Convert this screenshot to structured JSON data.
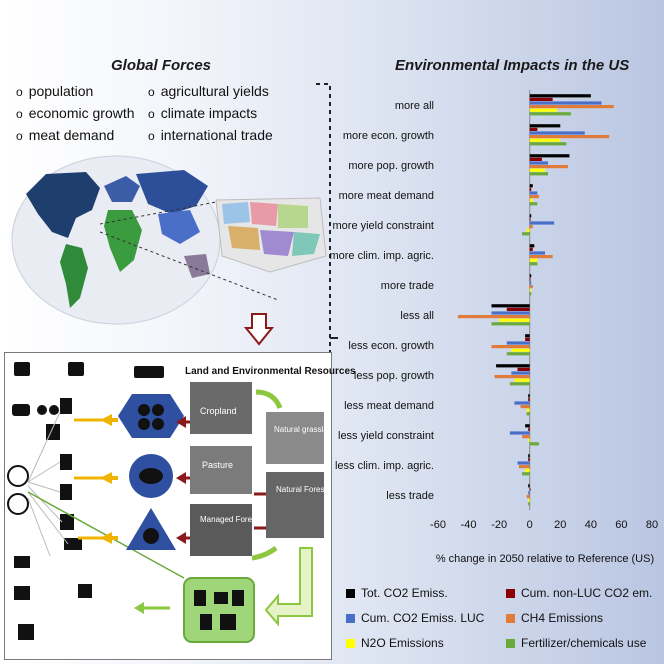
{
  "left_title": "Global Forces",
  "forces_left": [
    "population",
    "economic growth",
    "meat demand"
  ],
  "forces_right": [
    "agricultural yields",
    "climate impacts",
    "international trade"
  ],
  "bullet": "o",
  "resources_title": "Land and Environmental Resources",
  "photo_labels": {
    "cropland": "Cropland",
    "pasture": "Pasture",
    "managed_forest": "Managed\nForest",
    "natural_grasslands": "Natural\ngrasslands",
    "natural_forests": "Natural\nForests"
  },
  "colors": {
    "tot_co2": "#000000",
    "cum_non_luc": "#8b0000",
    "cum_luc": "#4a6fc9",
    "ch4": "#e07b39",
    "n2o": "#ffff00",
    "fert": "#6aaa3c"
  },
  "chart_data": {
    "type": "bar",
    "orientation": "horizontal",
    "title": "Environmental Impacts in the US",
    "xlabel": "% change in 2050 relative to Reference (US)",
    "xlim": [
      -60,
      80
    ],
    "xticks": [
      -60,
      -40,
      -20,
      0,
      20,
      40,
      60,
      80
    ],
    "categories": [
      "more all",
      "more econ. growth",
      "more pop. growth",
      "more meat demand",
      "more yield constraint",
      "more clim. imp. agric.",
      "more trade",
      "less all",
      "less econ. growth",
      "less pop. growth",
      "less meat demand",
      "less yield constraint",
      "less clim. imp. agric.",
      "less trade"
    ],
    "series": [
      {
        "name": "Tot. CO2 Emiss.",
        "values": [
          40,
          20,
          26,
          2,
          1,
          3,
          1,
          -25,
          -3,
          -22,
          -1,
          -3,
          -1,
          -1
        ]
      },
      {
        "name": "Cum. non-LUC CO2 em.",
        "values": [
          15,
          5,
          8,
          1,
          0,
          2,
          0,
          -15,
          -3,
          -8,
          -1,
          -1,
          -1,
          0
        ]
      },
      {
        "name": "Cum. CO2 Emiss. LUC",
        "values": [
          47,
          36,
          12,
          5,
          16,
          10,
          1,
          -25,
          -15,
          -12,
          -10,
          -13,
          -8,
          -1
        ]
      },
      {
        "name": "CH4 Emissions",
        "values": [
          55,
          52,
          25,
          6,
          2,
          15,
          2,
          -47,
          -25,
          -23,
          -6,
          -5,
          -7,
          -2
        ]
      },
      {
        "name": "N2O Emissions",
        "values": [
          18,
          20,
          10,
          2,
          -2,
          5,
          1,
          -20,
          -12,
          -10,
          -2,
          -1,
          -3,
          -1
        ]
      },
      {
        "name": "Fertilizer/chemicals use",
        "values": [
          27,
          24,
          12,
          5,
          -5,
          5,
          1,
          -25,
          -15,
          -13,
          -2,
          6,
          -5,
          -1
        ]
      }
    ],
    "legend_position": "bottom"
  }
}
